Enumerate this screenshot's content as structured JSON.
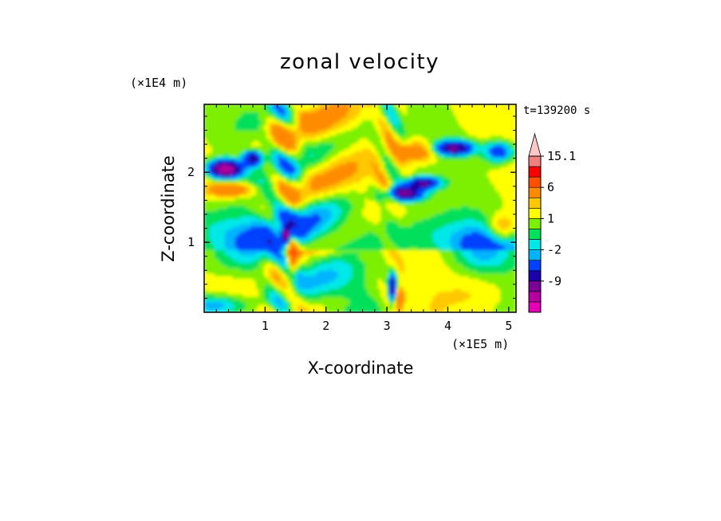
{
  "chart_data": {
    "type": "heatmap",
    "title": "zonal velocity",
    "xlabel": "X-coordinate",
    "ylabel": "Z-coordinate",
    "x_unit": "(×1E5 m)",
    "y_unit": "(×1E4 m)",
    "time_label": "t=139200 s",
    "xlim": [
      0,
      5.12
    ],
    "ylim": [
      0,
      2.97
    ],
    "x_ticks": [
      "1",
      "2",
      "3",
      "4",
      "5"
    ],
    "y_ticks": [
      "1",
      "2"
    ],
    "x_tick_values": [
      1,
      2,
      3,
      4,
      5
    ],
    "y_tick_values": [
      1,
      2
    ],
    "colorbar": {
      "levels": [
        -15,
        -12,
        -9,
        -6,
        -3,
        -2,
        -1,
        0,
        1,
        2,
        3,
        6,
        9,
        12,
        15.1
      ],
      "labels": [
        "15.1",
        "6",
        "1",
        "-2",
        "-9"
      ],
      "label_values": [
        15.1,
        6,
        1,
        -2,
        -9
      ],
      "colors": [
        "#e400b4",
        "#b4009e",
        "#7a0096",
        "#1a00a8",
        "#0040ff",
        "#00b4ff",
        "#00e8e8",
        "#00e05a",
        "#7cf000",
        "#ffff00",
        "#ffc800",
        "#ff8c00",
        "#ff5000",
        "#ff0000",
        "#f08080",
        "#ffc8c8"
      ],
      "extend": "max"
    }
  }
}
